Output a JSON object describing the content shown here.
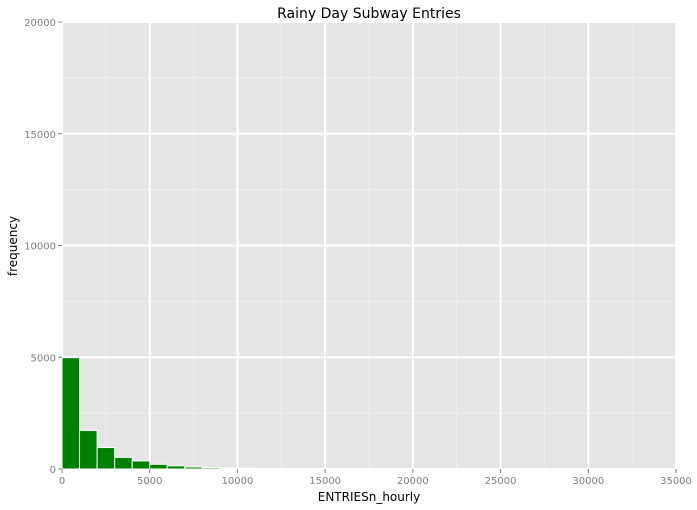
{
  "chart_data": {
    "type": "bar",
    "title": "Rainy Day Subway Entries",
    "xlabel": "ENTRIESn_hourly",
    "ylabel": "frequency",
    "xlim": [
      0,
      35000
    ],
    "ylim": [
      0,
      20000
    ],
    "xticks": [
      "0",
      "5000",
      "10000",
      "15000",
      "20000",
      "25000",
      "30000",
      "35000"
    ],
    "yticks": [
      "0",
      "5000",
      "10000",
      "15000",
      "20000"
    ],
    "grid": true,
    "legend": "none",
    "colors": {
      "bar": "#008000",
      "panel": "#e5e5e5",
      "grid_major": "#ffffff",
      "grid_minor": "#efefef"
    },
    "bins": [
      {
        "x0": 0,
        "x1": 1000,
        "value": 4980
      },
      {
        "x0": 1000,
        "x1": 2000,
        "value": 1720
      },
      {
        "x0": 2000,
        "x1": 3000,
        "value": 960
      },
      {
        "x0": 3000,
        "x1": 4000,
        "value": 520
      },
      {
        "x0": 4000,
        "x1": 5000,
        "value": 360
      },
      {
        "x0": 5000,
        "x1": 6000,
        "value": 210
      },
      {
        "x0": 6000,
        "x1": 7000,
        "value": 140
      },
      {
        "x0": 7000,
        "x1": 8000,
        "value": 90
      },
      {
        "x0": 8000,
        "x1": 9000,
        "value": 60
      },
      {
        "x0": 9000,
        "x1": 10000,
        "value": 45
      },
      {
        "x0": 10000,
        "x1": 11000,
        "value": 35
      }
    ]
  }
}
